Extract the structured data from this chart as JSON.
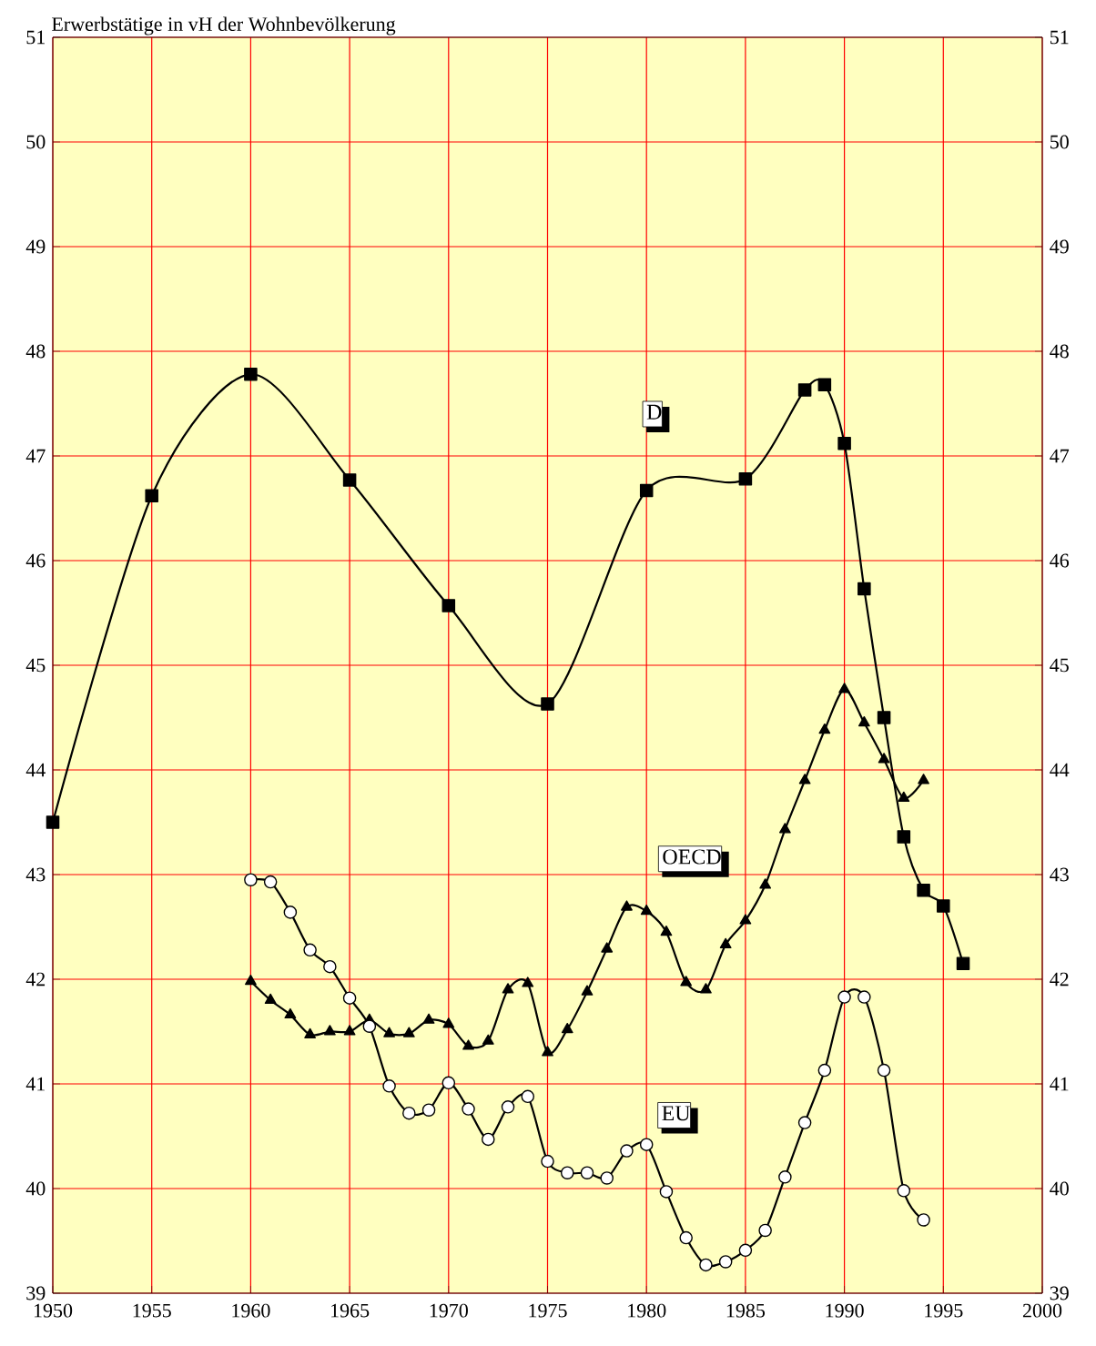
{
  "chart_data": {
    "type": "line",
    "ylabel": "Erwerbstätige in vH der Wohnbevölkerung",
    "xlim": [
      1950,
      2000
    ],
    "xticks": [
      1950,
      1955,
      1960,
      1965,
      1970,
      1975,
      1980,
      1985,
      1990,
      1995,
      2000
    ],
    "ylim": [
      39,
      51
    ],
    "yticks": [
      39,
      40,
      41,
      42,
      43,
      44,
      45,
      46,
      47,
      48,
      49,
      50,
      51
    ],
    "y2lim": [
      39,
      51
    ],
    "y2ticks": [
      39,
      40,
      41,
      42,
      43,
      44,
      45,
      46,
      47,
      48,
      49,
      50,
      51
    ],
    "grid": true,
    "legend": false,
    "series": [
      {
        "name": "D",
        "color": "#000000",
        "marker": "square",
        "x": [
          1950,
          1955,
          1960,
          1965,
          1970,
          1975,
          1980,
          1985,
          1988,
          1989,
          1990,
          1991,
          1992,
          1993,
          1994,
          1995,
          1996
        ],
        "values": [
          43.5,
          46.62,
          47.78,
          46.77,
          45.57,
          44.63,
          46.67,
          46.78,
          47.63,
          47.68,
          47.12,
          45.73,
          44.5,
          43.36,
          42.85,
          42.7,
          42.15
        ]
      },
      {
        "name": "OECD",
        "color": "#000000",
        "marker": "triangle",
        "x": [
          1960,
          1961,
          1962,
          1963,
          1964,
          1965,
          1966,
          1967,
          1968,
          1969,
          1970,
          1971,
          1972,
          1973,
          1974,
          1975,
          1976,
          1977,
          1978,
          1979,
          1980,
          1981,
          1982,
          1983,
          1984,
          1985,
          1986,
          1987,
          1988,
          1989,
          1990,
          1991,
          1992,
          1993,
          1994
        ],
        "values": [
          41.98,
          41.8,
          41.66,
          41.47,
          41.5,
          41.5,
          41.61,
          41.48,
          41.48,
          41.61,
          41.57,
          41.36,
          41.41,
          41.9,
          41.96,
          41.3,
          41.52,
          41.88,
          42.29,
          42.69,
          42.65,
          42.45,
          41.97,
          41.9,
          42.33,
          42.56,
          42.9,
          43.43,
          43.9,
          44.38,
          44.77,
          44.45,
          44.1,
          43.73,
          43.9
        ]
      },
      {
        "name": "EU",
        "color": "#000000",
        "marker": "circle",
        "x": [
          1960,
          1961,
          1962,
          1963,
          1964,
          1965,
          1966,
          1967,
          1968,
          1969,
          1970,
          1971,
          1972,
          1973,
          1974,
          1975,
          1976,
          1977,
          1978,
          1979,
          1980,
          1981,
          1982,
          1983,
          1984,
          1985,
          1986,
          1987,
          1988,
          1989,
          1990,
          1991,
          1992,
          1993,
          1994
        ],
        "values": [
          42.95,
          42.93,
          42.64,
          42.28,
          42.12,
          41.82,
          41.55,
          40.98,
          40.72,
          40.75,
          41.01,
          40.76,
          40.47,
          40.78,
          40.88,
          40.26,
          40.15,
          40.15,
          40.1,
          40.36,
          40.42,
          39.97,
          39.53,
          39.27,
          39.3,
          39.41,
          39.6,
          40.11,
          40.63,
          41.13,
          41.83,
          41.83,
          41.13,
          39.98,
          39.7
        ]
      }
    ]
  }
}
